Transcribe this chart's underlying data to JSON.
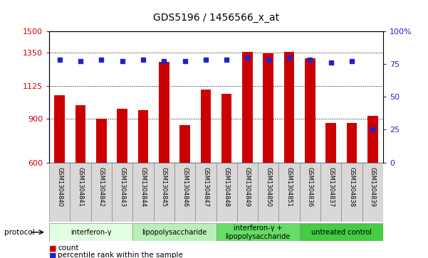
{
  "title": "GDS5196 / 1456566_x_at",
  "samples": [
    "GSM1304840",
    "GSM1304841",
    "GSM1304842",
    "GSM1304843",
    "GSM1304844",
    "GSM1304845",
    "GSM1304846",
    "GSM1304847",
    "GSM1304848",
    "GSM1304849",
    "GSM1304850",
    "GSM1304851",
    "GSM1304836",
    "GSM1304837",
    "GSM1304838",
    "GSM1304839"
  ],
  "counts": [
    1060,
    990,
    900,
    970,
    960,
    1290,
    855,
    1100,
    1070,
    1355,
    1345,
    1355,
    1315,
    870,
    870,
    920
  ],
  "percentiles": [
    78,
    77,
    78,
    77,
    78,
    77,
    77,
    78,
    78,
    80,
    78,
    80,
    78,
    76,
    77,
    25
  ],
  "bar_color": "#cc0000",
  "dot_color": "#2222cc",
  "ylim_left": [
    600,
    1500
  ],
  "ylim_right": [
    0,
    100
  ],
  "yticks_left": [
    600,
    900,
    1125,
    1350,
    1500
  ],
  "yticks_right": [
    0,
    25,
    50,
    75,
    100
  ],
  "groups": [
    {
      "label": "interferon-γ",
      "start": 0,
      "end": 4,
      "color": "#e0ffe0"
    },
    {
      "label": "lipopolysaccharide",
      "start": 4,
      "end": 8,
      "color": "#b8f0b8"
    },
    {
      "label": "interferon-γ +\nlipopolysaccharide",
      "start": 8,
      "end": 12,
      "color": "#66dd66"
    },
    {
      "label": "untreated control",
      "start": 12,
      "end": 16,
      "color": "#44cc44"
    }
  ],
  "protocol_label": "protocol",
  "legend_count_label": "count",
  "legend_pct_label": "percentile rank within the sample",
  "bg_color": "#ffffff",
  "bar_width": 0.5,
  "title_fontsize": 10,
  "tick_fontsize": 8,
  "sample_fontsize": 6,
  "group_fontsize": 7
}
